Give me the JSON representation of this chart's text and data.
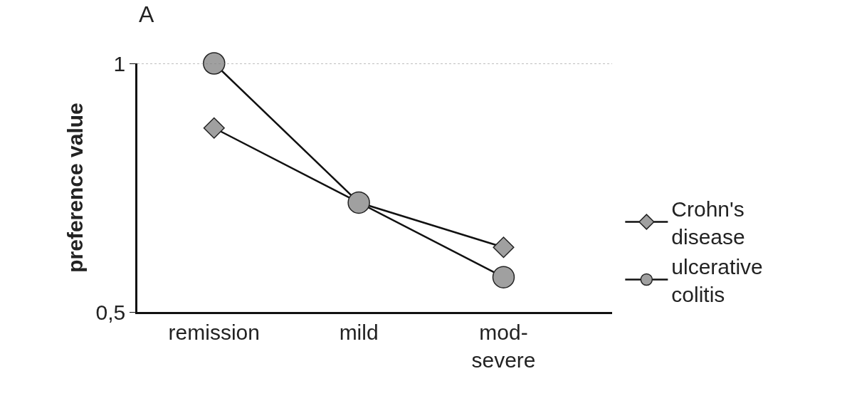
{
  "chart_data": {
    "type": "line",
    "title": "A",
    "ylabel": "preference value",
    "categories": [
      "remission",
      "mild",
      "mod-\nsevere"
    ],
    "series": [
      {
        "name": "Crohn's\ndisease",
        "color": "#a0a0a0",
        "marker": "diamond",
        "values": [
          0.87,
          0.72,
          0.63
        ]
      },
      {
        "name": "ulcerative\ncolitis",
        "color": "#a0a0a0",
        "marker": "circle",
        "values": [
          1.0,
          0.72,
          0.57
        ]
      }
    ],
    "ylim": [
      0.5,
      1
    ],
    "yticks": [
      1,
      {
        "value": 0.5,
        "label": "0,5"
      }
    ],
    "ref_lines": [
      {
        "axis": "y",
        "value": 1,
        "line_style": "dotted",
        "color": "#808080"
      }
    ],
    "legend": "right",
    "line_style": "solid"
  }
}
